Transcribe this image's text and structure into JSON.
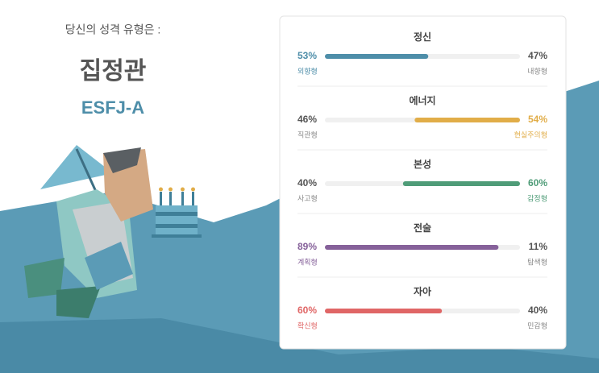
{
  "header": {
    "intro": "당신의 성격 유형은 :",
    "type_name": "집정관",
    "type_code": "ESFJ-A"
  },
  "traits": [
    {
      "name": "정신",
      "values": [
        53,
        47
      ],
      "value_labels": [
        "53%",
        "47%"
      ],
      "labels": [
        "외향형",
        "내향형"
      ],
      "dominant": 0,
      "color": "#4e8ea9"
    },
    {
      "name": "에너지",
      "values": [
        46,
        54
      ],
      "value_labels": [
        "46%",
        "54%"
      ],
      "labels": [
        "직관형",
        "현실주의형"
      ],
      "dominant": 1,
      "color": "#e1ad48"
    },
    {
      "name": "본성",
      "values": [
        40,
        60
      ],
      "value_labels": [
        "40%",
        "60%"
      ],
      "labels": [
        "사고형",
        "감정형"
      ],
      "dominant": 1,
      "color": "#4f9c78"
    },
    {
      "name": "전술",
      "values": [
        89,
        11
      ],
      "value_labels": [
        "89%",
        "11%"
      ],
      "labels": [
        "계획형",
        "탐색형"
      ],
      "dominant": 0,
      "color": "#86619a"
    },
    {
      "name": "자아",
      "values": [
        60,
        40
      ],
      "value_labels": [
        "60%",
        "40%"
      ],
      "labels": [
        "확신형",
        "민감형"
      ],
      "dominant": 0,
      "color": "#e06666"
    }
  ]
}
